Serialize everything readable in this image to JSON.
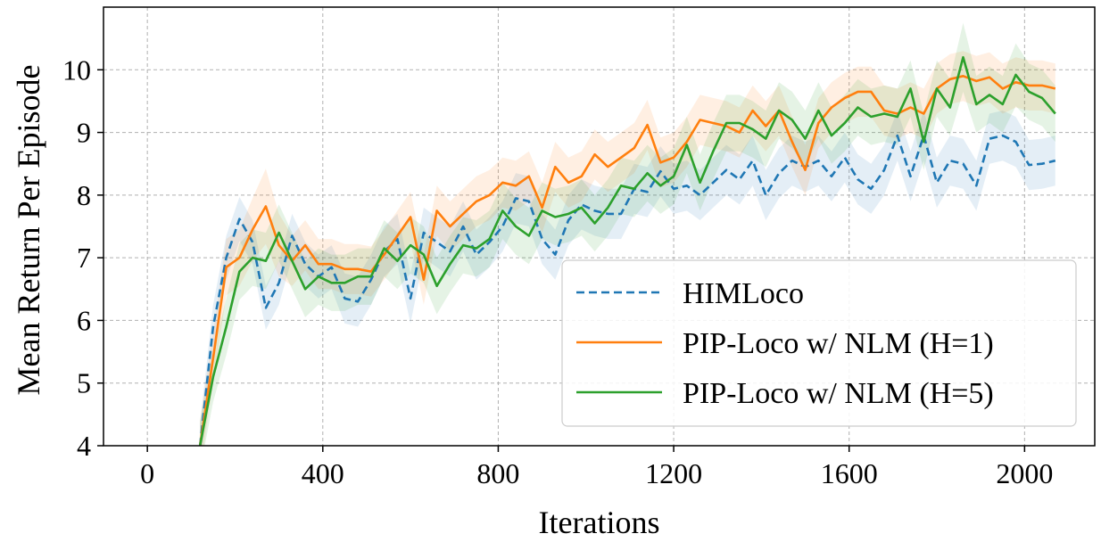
{
  "chart_data": {
    "type": "line",
    "xlabel": "Iterations",
    "ylabel": "Mean Return Per Episode",
    "xlim": [
      -100,
      2160
    ],
    "ylim": [
      4.0,
      11.0
    ],
    "xticks": [
      0,
      400,
      800,
      1200,
      1600,
      2000
    ],
    "yticks": [
      4,
      5,
      6,
      7,
      8,
      9,
      10
    ],
    "grid": true,
    "legend_position": "lower-right",
    "x": [
      120,
      150,
      180,
      210,
      240,
      270,
      300,
      330,
      360,
      390,
      420,
      450,
      480,
      510,
      540,
      570,
      600,
      630,
      660,
      690,
      720,
      750,
      780,
      810,
      840,
      870,
      900,
      930,
      960,
      990,
      1020,
      1050,
      1080,
      1110,
      1140,
      1170,
      1200,
      1230,
      1260,
      1290,
      1320,
      1350,
      1380,
      1410,
      1440,
      1470,
      1500,
      1530,
      1560,
      1590,
      1620,
      1650,
      1680,
      1710,
      1740,
      1770,
      1800,
      1830,
      1860,
      1890,
      1920,
      1950,
      1980,
      2010,
      2040,
      2070
    ],
    "series": [
      {
        "name": "HIMLoco",
        "color": "#1f77b4",
        "linestyle": "dashed",
        "values": [
          4.0,
          5.9,
          7.0,
          7.62,
          7.25,
          6.2,
          6.6,
          7.35,
          6.9,
          6.7,
          6.85,
          6.35,
          6.3,
          6.65,
          7.1,
          7.3,
          6.35,
          7.4,
          7.25,
          7.1,
          7.5,
          7.05,
          7.25,
          7.5,
          7.95,
          7.9,
          7.3,
          7.05,
          7.6,
          7.85,
          7.75,
          7.7,
          7.7,
          8.1,
          8.05,
          8.38,
          8.1,
          8.15,
          8.0,
          8.2,
          8.4,
          8.25,
          8.55,
          8.0,
          8.35,
          8.55,
          8.45,
          8.55,
          8.3,
          8.6,
          8.25,
          8.1,
          8.4,
          8.95,
          8.3,
          8.95,
          8.2,
          8.55,
          8.5,
          8.15,
          8.9,
          8.95,
          8.85,
          8.48,
          8.5,
          8.55
        ],
        "band": [
          0.35,
          0.35,
          0.35,
          0.35,
          0.35,
          0.35,
          0.35,
          0.35,
          0.35,
          0.35,
          0.35,
          0.4,
          0.4,
          0.4,
          0.4,
          0.4,
          0.4,
          0.4,
          0.4,
          0.4,
          0.4,
          0.4,
          0.4,
          0.4,
          0.4,
          0.4,
          0.4,
          0.4,
          0.4,
          0.4,
          0.4,
          0.4,
          0.4,
          0.4,
          0.4,
          0.4,
          0.4,
          0.4,
          0.4,
          0.4,
          0.4,
          0.4,
          0.4,
          0.4,
          0.4,
          0.4,
          0.4,
          0.4,
          0.4,
          0.4,
          0.4,
          0.4,
          0.4,
          0.4,
          0.4,
          0.4,
          0.4,
          0.4,
          0.4,
          0.4,
          0.4,
          0.4,
          0.4,
          0.4,
          0.4,
          0.4
        ]
      },
      {
        "name": "PIP-Loco w/ NLM (H=1)",
        "color": "#ff7f0e",
        "linestyle": "solid",
        "values": [
          4.0,
          5.4,
          6.85,
          7.0,
          7.45,
          7.82,
          7.2,
          6.95,
          7.2,
          6.9,
          6.9,
          6.82,
          6.82,
          6.78,
          7.05,
          7.35,
          7.65,
          6.65,
          7.75,
          7.5,
          7.7,
          7.9,
          8.0,
          8.2,
          8.15,
          8.3,
          7.8,
          8.45,
          8.2,
          8.3,
          8.65,
          8.45,
          8.6,
          8.75,
          9.12,
          8.52,
          8.6,
          8.85,
          9.2,
          9.15,
          9.1,
          9.0,
          9.35,
          9.1,
          9.35,
          8.85,
          8.4,
          9.15,
          9.4,
          9.55,
          9.65,
          9.65,
          9.35,
          9.3,
          9.4,
          9.3,
          9.7,
          9.85,
          9.9,
          9.82,
          9.88,
          9.7,
          9.8,
          9.75,
          9.75,
          9.7
        ],
        "band": [
          0.4,
          0.4,
          0.45,
          0.45,
          0.5,
          0.6,
          0.5,
          0.4,
          0.4,
          0.4,
          0.4,
          0.4,
          0.4,
          0.4,
          0.4,
          0.4,
          0.4,
          0.4,
          0.4,
          0.4,
          0.4,
          0.4,
          0.4,
          0.4,
          0.4,
          0.4,
          0.4,
          0.4,
          0.4,
          0.4,
          0.4,
          0.4,
          0.4,
          0.4,
          0.4,
          0.4,
          0.4,
          0.4,
          0.4,
          0.4,
          0.4,
          0.4,
          0.4,
          0.4,
          0.4,
          0.4,
          0.4,
          0.4,
          0.4,
          0.4,
          0.4,
          0.4,
          0.4,
          0.4,
          0.4,
          0.4,
          0.4,
          0.4,
          0.4,
          0.4,
          0.4,
          0.4,
          0.4,
          0.4,
          0.4,
          0.4
        ]
      },
      {
        "name": "PIP-Loco w/ NLM (H=5)",
        "color": "#2ca02c",
        "linestyle": "solid",
        "values": [
          4.0,
          5.1,
          5.9,
          6.78,
          7.0,
          6.95,
          7.4,
          6.95,
          6.5,
          6.7,
          6.6,
          6.6,
          6.7,
          6.7,
          7.15,
          6.95,
          7.2,
          7.05,
          6.55,
          6.9,
          7.2,
          7.15,
          7.3,
          7.75,
          7.5,
          7.35,
          7.75,
          7.65,
          7.7,
          7.8,
          7.55,
          7.8,
          8.15,
          8.1,
          8.35,
          8.15,
          8.3,
          8.8,
          8.2,
          8.7,
          9.15,
          9.15,
          9.05,
          8.9,
          9.35,
          9.2,
          8.9,
          9.35,
          8.95,
          9.15,
          9.4,
          9.25,
          9.3,
          9.25,
          9.7,
          8.85,
          9.7,
          9.4,
          10.2,
          9.45,
          9.6,
          9.45,
          9.92,
          9.65,
          9.55,
          9.3
        ],
        "band": [
          0.4,
          0.4,
          0.45,
          0.45,
          0.45,
          0.45,
          0.45,
          0.45,
          0.45,
          0.45,
          0.45,
          0.45,
          0.45,
          0.45,
          0.45,
          0.45,
          0.45,
          0.45,
          0.45,
          0.45,
          0.45,
          0.45,
          0.45,
          0.45,
          0.45,
          0.45,
          0.45,
          0.45,
          0.45,
          0.45,
          0.45,
          0.45,
          0.45,
          0.45,
          0.45,
          0.45,
          0.45,
          0.45,
          0.45,
          0.45,
          0.45,
          0.45,
          0.45,
          0.45,
          0.45,
          0.45,
          0.45,
          0.45,
          0.45,
          0.45,
          0.45,
          0.45,
          0.45,
          0.45,
          0.45,
          0.45,
          0.45,
          0.45,
          0.55,
          0.45,
          0.45,
          0.45,
          0.5,
          0.45,
          0.45,
          0.45
        ]
      }
    ]
  }
}
